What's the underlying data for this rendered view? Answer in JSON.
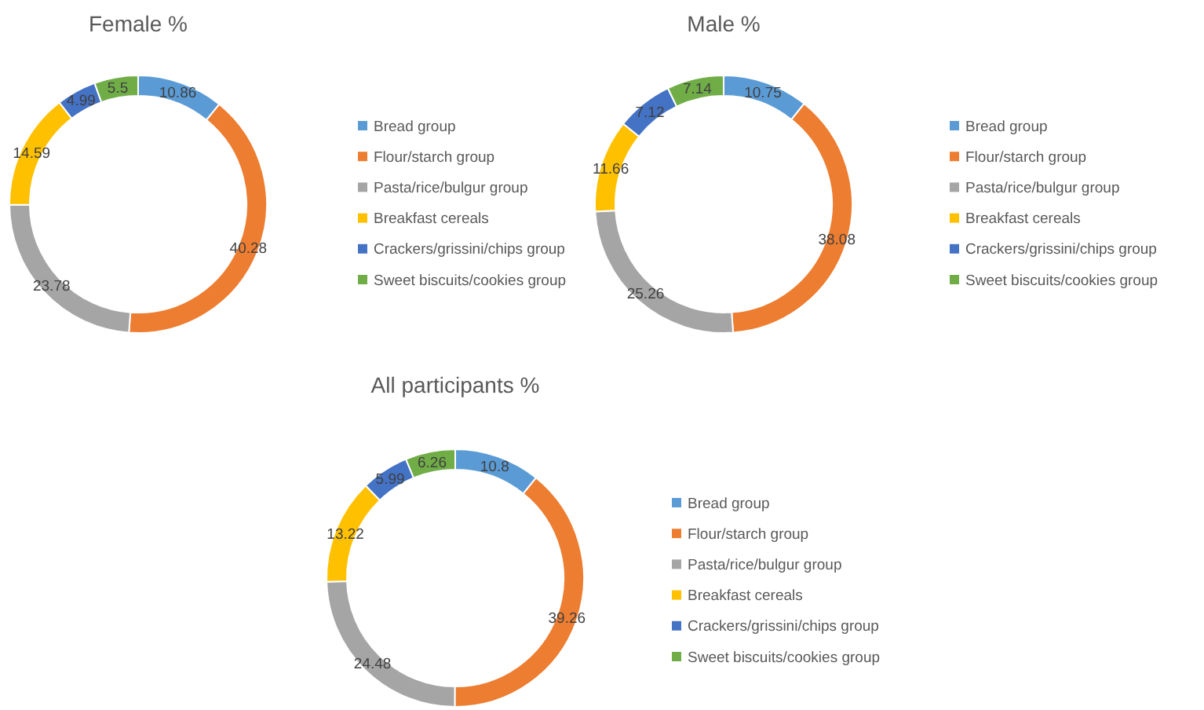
{
  "chart_data": [
    {
      "type": "donut",
      "title": "Female %",
      "categories": [
        "Bread group",
        "Flour/starch group",
        "Pasta/rice/bulgur group",
        "Breakfast cereals",
        "Crackers/grissini/chips group",
        "Sweet biscuits/cookies group"
      ],
      "values": [
        10.86,
        40.28,
        23.78,
        14.59,
        4.99,
        5.5
      ],
      "colors": [
        "#5b9bd5",
        "#ed7d31",
        "#a5a5a5",
        "#ffc000",
        "#4472c4",
        "#70ad47"
      ],
      "data_labels": true,
      "legend": "right"
    },
    {
      "type": "donut",
      "title": "Male %",
      "categories": [
        "Bread group",
        "Flour/starch group",
        "Pasta/rice/bulgur group",
        "Breakfast cereals",
        "Crackers/grissini/chips group",
        "Sweet biscuits/cookies group"
      ],
      "values": [
        10.75,
        38.08,
        25.26,
        11.66,
        7.12,
        7.14
      ],
      "colors": [
        "#5b9bd5",
        "#ed7d31",
        "#a5a5a5",
        "#ffc000",
        "#4472c4",
        "#70ad47"
      ],
      "data_labels": true,
      "legend": "right"
    },
    {
      "type": "donut",
      "title": "All participants %",
      "categories": [
        "Bread group",
        "Flour/starch group",
        "Pasta/rice/bulgur group",
        "Breakfast cereals",
        "Crackers/grissini/chips group",
        "Sweet biscuits/cookies group"
      ],
      "values": [
        10.8,
        39.26,
        24.48,
        13.22,
        5.99,
        6.26
      ],
      "colors": [
        "#5b9bd5",
        "#ed7d31",
        "#a5a5a5",
        "#ffc000",
        "#4472c4",
        "#70ad47"
      ],
      "data_labels": true,
      "legend": "right"
    }
  ]
}
